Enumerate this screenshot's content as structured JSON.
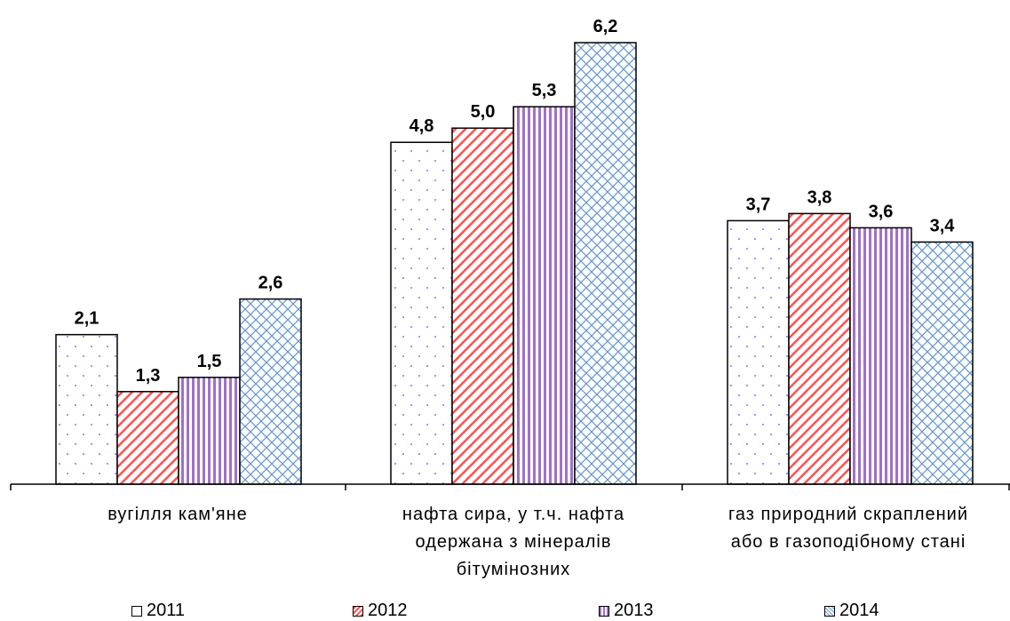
{
  "chart_data": {
    "type": "bar",
    "categories": [
      "вугілля кам'яне",
      "нафта сира, у т.ч. нафта одержана з мінералів бітумінозних",
      "газ природний скраплений або в газоподібному стані"
    ],
    "category_lines": [
      [
        "вугілля кам'яне"
      ],
      [
        "нафта сира, у т.ч. нафта",
        "одержана з мінералів",
        "бітумінозних"
      ],
      [
        "газ природний скраплений",
        "або в газоподібному стані"
      ]
    ],
    "series": [
      {
        "name": "2011",
        "values": [
          2.1,
          4.8,
          3.7
        ],
        "labels": [
          "2,1",
          "4,8",
          "3,7"
        ],
        "color": "#9999ff",
        "pattern": "dots"
      },
      {
        "name": "2012",
        "values": [
          1.3,
          5.0,
          3.8
        ],
        "labels": [
          "1,3",
          "5,0",
          "3,8"
        ],
        "color": "#ff5050",
        "pattern": "diagonal"
      },
      {
        "name": "2013",
        "values": [
          1.5,
          5.3,
          3.6
        ],
        "labels": [
          "1,5",
          "5,3",
          "3,6"
        ],
        "color": "#9966cc",
        "pattern": "vertical"
      },
      {
        "name": "2014",
        "values": [
          2.6,
          6.2,
          3.4
        ],
        "labels": [
          "2,6",
          "6,2",
          "3,4"
        ],
        "color": "#6699cc",
        "pattern": "lattice"
      }
    ],
    "ylim": [
      0,
      6.2
    ],
    "grid": false,
    "legend_position": "bottom",
    "title": "",
    "xlabel": "",
    "ylabel": ""
  }
}
